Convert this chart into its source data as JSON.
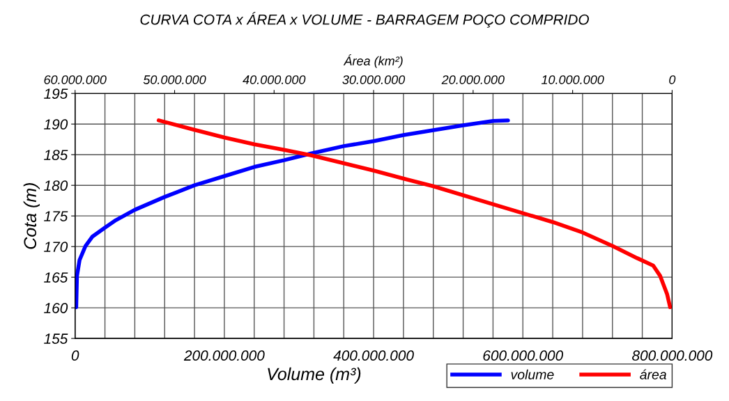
{
  "chart_data": {
    "type": "line",
    "title": "CURVA COTA x ÁREA x VOLUME - BARRAGEM POÇO COMPRIDO",
    "xlabel": "Volume (m³)",
    "x2label": "Área (km²)",
    "ylabel": "Cota (m)",
    "xlim": [
      0,
      800000000
    ],
    "xticks": [
      {
        "value": 0,
        "label": "0"
      },
      {
        "value": 40000000,
        "label": null
      },
      {
        "value": 80000000,
        "label": null
      },
      {
        "value": 120000000,
        "label": null
      },
      {
        "value": 160000000,
        "label": null
      },
      {
        "value": 200000000,
        "label": "200.000.000"
      },
      {
        "value": 240000000,
        "label": null
      },
      {
        "value": 280000000,
        "label": null
      },
      {
        "value": 320000000,
        "label": null
      },
      {
        "value": 360000000,
        "label": null
      },
      {
        "value": 400000000,
        "label": "400.000.000"
      },
      {
        "value": 440000000,
        "label": null
      },
      {
        "value": 480000000,
        "label": null
      },
      {
        "value": 520000000,
        "label": null
      },
      {
        "value": 560000000,
        "label": null
      },
      {
        "value": 600000000,
        "label": "600.000.000"
      },
      {
        "value": 640000000,
        "label": null
      },
      {
        "value": 680000000,
        "label": null
      },
      {
        "value": 720000000,
        "label": null
      },
      {
        "value": 760000000,
        "label": null
      },
      {
        "value": 800000000,
        "label": "800.000.000"
      }
    ],
    "x2lim": [
      60000000,
      0
    ],
    "x2ticks": [
      {
        "value": 60000000,
        "label": "60.000.000"
      },
      {
        "value": 50000000,
        "label": "50.000.000"
      },
      {
        "value": 40000000,
        "label": "40.000.000"
      },
      {
        "value": 30000000,
        "label": "30.000.000"
      },
      {
        "value": 20000000,
        "label": "20.000.000"
      },
      {
        "value": 10000000,
        "label": "10.000.000"
      },
      {
        "value": 0,
        "label": "0"
      }
    ],
    "ylim": [
      155,
      195
    ],
    "yticks": [
      155,
      160,
      165,
      170,
      175,
      180,
      185,
      190,
      195
    ],
    "grid": true,
    "legend": "bottom right",
    "marker": "none",
    "line_style": "solid",
    "series": [
      {
        "name": "volume",
        "color": "#0000ff",
        "x": [
          1500000,
          2500000,
          6000000,
          14000000,
          23000000,
          39000000,
          54500000,
          80000000,
          120000000,
          160000000,
          200000000,
          240000000,
          280000000,
          316000000,
          360000000,
          400000000,
          440000000,
          520000000,
          560000000,
          580000000
        ],
        "values": [
          160.1,
          165.2,
          167.8,
          170.1,
          171.6,
          173.0,
          174.3,
          176.0,
          178.1,
          180.0,
          181.5,
          183.0,
          184.1,
          185.2,
          186.4,
          187.2,
          188.2,
          189.8,
          190.5,
          190.6
        ]
      },
      {
        "name": "área",
        "color": "#ff0000",
        "axis": "x2",
        "x": [
          51600000,
          48000000,
          45000000,
          42000000,
          39000000,
          36300000,
          33000000,
          30000000,
          27000000,
          24000000,
          18000000,
          12000000,
          9000000,
          6000000,
          3500000,
          1900000,
          1200000,
          500000,
          200000
        ],
        "values": [
          190.6,
          189.05,
          187.8,
          186.7,
          185.8,
          184.9,
          183.6,
          182.4,
          181.1,
          179.85,
          176.9,
          174.0,
          172.3,
          170.1,
          168.1,
          166.9,
          165.2,
          162.2,
          160.1
        ]
      }
    ]
  }
}
